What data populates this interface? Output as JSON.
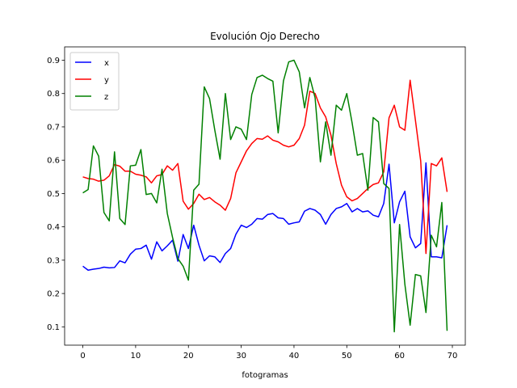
{
  "chart_data": {
    "type": "line",
    "title": "Evolución Ojo Derecho",
    "x_label": "fotogramas",
    "x": [
      0,
      1,
      2,
      3,
      4,
      5,
      6,
      7,
      8,
      9,
      10,
      11,
      12,
      13,
      14,
      15,
      16,
      17,
      18,
      19,
      20,
      21,
      22,
      23,
      24,
      25,
      26,
      27,
      28,
      29,
      30,
      31,
      32,
      33,
      34,
      35,
      36,
      37,
      38,
      39,
      40,
      41,
      42,
      43,
      44,
      45,
      46,
      47,
      48,
      49,
      50,
      51,
      52,
      53,
      54,
      55,
      56,
      57,
      58,
      59,
      60,
      61,
      62,
      63,
      64,
      65,
      66,
      67,
      68,
      69
    ],
    "series": [
      {
        "name": "x",
        "color": "#0000ff",
        "values": [
          0.282,
          0.27,
          0.273,
          0.275,
          0.279,
          0.277,
          0.278,
          0.298,
          0.292,
          0.318,
          0.333,
          0.335,
          0.345,
          0.303,
          0.355,
          0.328,
          0.343,
          0.36,
          0.297,
          0.377,
          0.335,
          0.405,
          0.345,
          0.298,
          0.313,
          0.31,
          0.293,
          0.32,
          0.335,
          0.378,
          0.405,
          0.398,
          0.408,
          0.425,
          0.423,
          0.437,
          0.44,
          0.427,
          0.425,
          0.408,
          0.412,
          0.415,
          0.447,
          0.455,
          0.45,
          0.437,
          0.408,
          0.437,
          0.455,
          0.46,
          0.47,
          0.445,
          0.455,
          0.445,
          0.448,
          0.435,
          0.43,
          0.47,
          0.588,
          0.412,
          0.475,
          0.507,
          0.37,
          0.337,
          0.35,
          0.592,
          0.31,
          0.31,
          0.307,
          0.405
        ]
      },
      {
        "name": "y",
        "color": "#ff0000",
        "values": [
          0.55,
          0.545,
          0.543,
          0.537,
          0.54,
          0.553,
          0.587,
          0.582,
          0.567,
          0.567,
          0.558,
          0.555,
          0.55,
          0.532,
          0.553,
          0.557,
          0.583,
          0.57,
          0.59,
          0.477,
          0.453,
          0.47,
          0.498,
          0.482,
          0.488,
          0.475,
          0.465,
          0.45,
          0.485,
          0.562,
          0.595,
          0.628,
          0.65,
          0.665,
          0.663,
          0.673,
          0.66,
          0.655,
          0.645,
          0.64,
          0.645,
          0.665,
          0.705,
          0.807,
          0.8,
          0.757,
          0.73,
          0.675,
          0.59,
          0.525,
          0.49,
          0.478,
          0.485,
          0.5,
          0.515,
          0.527,
          0.532,
          0.565,
          0.727,
          0.765,
          0.7,
          0.69,
          0.84,
          0.72,
          0.598,
          0.32,
          0.59,
          0.583,
          0.607,
          0.505
        ]
      },
      {
        "name": "z",
        "color": "#008000",
        "values": [
          0.502,
          0.512,
          0.643,
          0.612,
          0.443,
          0.418,
          0.625,
          0.425,
          0.407,
          0.583,
          0.585,
          0.632,
          0.497,
          0.5,
          0.472,
          0.573,
          0.44,
          0.368,
          0.305,
          0.282,
          0.24,
          0.51,
          0.528,
          0.82,
          0.785,
          0.69,
          0.603,
          0.8,
          0.662,
          0.7,
          0.693,
          0.662,
          0.797,
          0.848,
          0.855,
          0.845,
          0.837,
          0.682,
          0.838,
          0.895,
          0.9,
          0.865,
          0.757,
          0.848,
          0.787,
          0.595,
          0.715,
          0.615,
          0.765,
          0.75,
          0.8,
          0.713,
          0.615,
          0.62,
          0.51,
          0.728,
          0.715,
          0.53,
          0.515,
          0.085,
          0.407,
          0.228,
          0.105,
          0.257,
          0.253,
          0.143,
          0.375,
          0.34,
          0.473,
          0.088
        ]
      }
    ],
    "xlim": [
      -3.45,
      72.45
    ],
    "xticks": [
      0,
      10,
      20,
      30,
      40,
      50,
      60,
      70
    ],
    "ylim": [
      0.045,
      0.94
    ],
    "yticks": [
      0.1,
      0.2,
      0.3,
      0.4,
      0.5,
      0.6,
      0.7,
      0.8,
      0.9
    ],
    "legend": "upper left"
  }
}
